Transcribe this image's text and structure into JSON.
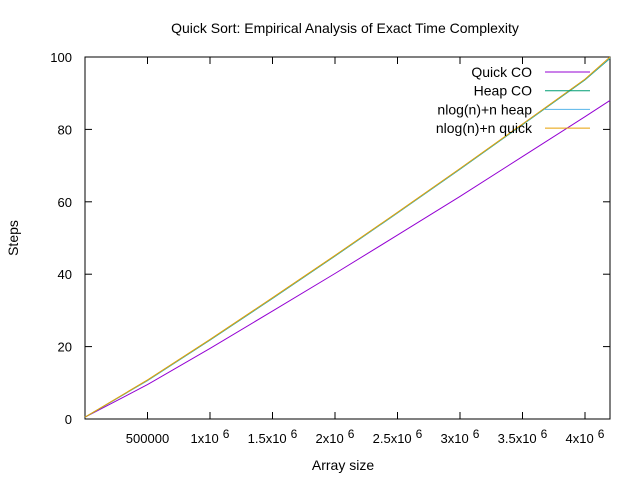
{
  "chart_data": {
    "type": "line",
    "title": "Quick Sort: Empirical Analysis of Exact Time Complexity",
    "xlabel": "Array size",
    "ylabel": "Steps",
    "xlim": [
      0,
      4200000
    ],
    "ylim": [
      0,
      100
    ],
    "x_ticks": [
      {
        "value": 500000,
        "label": "500000"
      },
      {
        "value": 1000000,
        "label": "1x10",
        "exp": "6"
      },
      {
        "value": 1500000,
        "label": "1.5x10",
        "exp": "6"
      },
      {
        "value": 2000000,
        "label": "2x10",
        "exp": "6"
      },
      {
        "value": 2500000,
        "label": "2.5x10",
        "exp": "6"
      },
      {
        "value": 3000000,
        "label": "3x10",
        "exp": "6"
      },
      {
        "value": 3500000,
        "label": "3.5x10",
        "exp": "6"
      },
      {
        "value": 4000000,
        "label": "4x10",
        "exp": "6"
      }
    ],
    "y_ticks": [
      0,
      20,
      40,
      60,
      80,
      100
    ],
    "grid": false,
    "legend_position": "top-right",
    "x": [
      0,
      500000,
      1000000,
      1500000,
      2000000,
      2500000,
      3000000,
      3500000,
      4000000,
      4200000
    ],
    "series": [
      {
        "name": "Quick CO",
        "color": "#9400d3",
        "values": [
          0.5,
          9.5,
          19.5,
          29.8,
          40.2,
          50.8,
          61.5,
          72.5,
          83.5,
          88
        ]
      },
      {
        "name": "Heap CO",
        "color": "#009e73",
        "values": [
          0.5,
          10.6,
          21.8,
          33.3,
          45.0,
          56.9,
          69.0,
          81.3,
          93.7,
          99.6
        ]
      },
      {
        "name": "nlog(n)+n heap",
        "color": "#56b4e9",
        "values": [
          0.5,
          10.7,
          21.9,
          33.4,
          45.1,
          57.0,
          69.1,
          81.4,
          93.8,
          99.8
        ]
      },
      {
        "name": "nlog(n)+n quick",
        "color": "#e69f00",
        "values": [
          0.5,
          10.8,
          22.0,
          33.5,
          45.2,
          57.1,
          69.2,
          81.5,
          93.9,
          100
        ]
      }
    ]
  }
}
